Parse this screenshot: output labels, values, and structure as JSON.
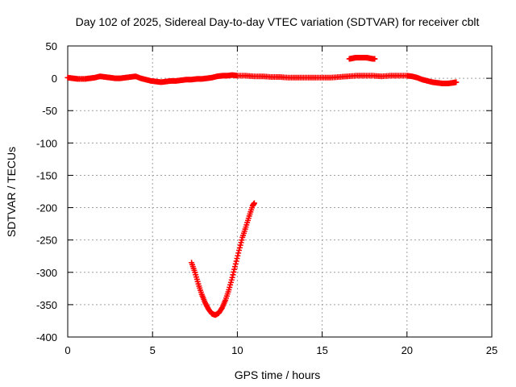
{
  "chart_data": {
    "type": "scatter",
    "title": "Day 102 of 2025, Sidereal Day-to-day VTEC variation (SDTVAR) for receiver cblt",
    "xlabel": "GPS time / hours",
    "ylabel": "SDTVAR / TECUs",
    "xlim": [
      0,
      25
    ],
    "ylim": [
      -400,
      50
    ],
    "xticks": [
      0,
      5,
      10,
      15,
      20,
      25
    ],
    "yticks": [
      50,
      0,
      -50,
      -100,
      -150,
      -200,
      -250,
      -300,
      -350,
      -400
    ],
    "grid": true,
    "marker": "plus",
    "color": "#ff0000",
    "series": [
      {
        "points": [
          [
            0.0,
            1
          ],
          [
            0.3,
            0
          ],
          [
            0.6,
            -1
          ],
          [
            1.0,
            -1
          ],
          [
            1.3,
            0
          ],
          [
            1.6,
            1
          ],
          [
            1.9,
            3
          ],
          [
            2.2,
            2
          ],
          [
            2.5,
            1
          ],
          [
            2.8,
            0
          ],
          [
            3.1,
            0
          ],
          [
            3.4,
            1
          ],
          [
            3.7,
            2
          ],
          [
            4.0,
            3
          ],
          [
            4.3,
            0
          ],
          [
            4.6,
            -2
          ],
          [
            4.9,
            -4
          ],
          [
            5.2,
            -5
          ],
          [
            5.5,
            -6
          ],
          [
            5.8,
            -5
          ],
          [
            6.1,
            -4
          ],
          [
            6.4,
            -4
          ],
          [
            6.7,
            -3
          ],
          [
            7.0,
            -2
          ],
          [
            7.3,
            -2
          ],
          [
            7.6,
            -1
          ],
          [
            7.9,
            -1
          ],
          [
            8.2,
            0
          ],
          [
            8.5,
            1
          ],
          [
            8.8,
            3
          ],
          [
            9.1,
            4
          ],
          [
            9.4,
            4
          ],
          [
            9.7,
            5
          ],
          [
            10.0,
            4
          ],
          [
            10.5,
            4
          ],
          [
            11.0,
            3
          ],
          [
            11.5,
            3
          ],
          [
            12.0,
            2
          ],
          [
            12.5,
            2
          ],
          [
            13.0,
            1
          ],
          [
            13.5,
            1
          ],
          [
            14.0,
            1
          ],
          [
            14.5,
            1
          ],
          [
            15.0,
            1
          ],
          [
            15.5,
            1
          ],
          [
            16.0,
            2
          ],
          [
            16.5,
            3
          ],
          [
            17.0,
            4
          ],
          [
            17.5,
            4
          ],
          [
            18.0,
            4
          ],
          [
            18.5,
            3
          ],
          [
            19.0,
            4
          ],
          [
            19.5,
            4
          ],
          [
            20.0,
            4
          ],
          [
            20.3,
            3
          ],
          [
            20.6,
            1
          ],
          [
            20.9,
            -2
          ],
          [
            21.2,
            -4
          ],
          [
            21.5,
            -6
          ],
          [
            21.8,
            -7
          ],
          [
            22.1,
            -8
          ],
          [
            22.4,
            -8
          ],
          [
            22.7,
            -7
          ],
          [
            22.9,
            -6
          ]
        ]
      },
      {
        "points": [
          [
            16.6,
            30
          ],
          [
            16.8,
            31
          ],
          [
            17.0,
            32
          ],
          [
            17.2,
            32
          ],
          [
            17.4,
            32
          ],
          [
            17.6,
            32
          ],
          [
            17.8,
            31
          ],
          [
            18.0,
            30
          ],
          [
            18.1,
            30
          ]
        ]
      },
      {
        "points": [
          [
            7.3,
            -285
          ],
          [
            7.5,
            -300
          ],
          [
            7.7,
            -318
          ],
          [
            7.9,
            -334
          ],
          [
            8.1,
            -347
          ],
          [
            8.3,
            -357
          ],
          [
            8.5,
            -364
          ],
          [
            8.7,
            -366
          ],
          [
            8.9,
            -363
          ],
          [
            9.1,
            -355
          ],
          [
            9.3,
            -343
          ],
          [
            9.5,
            -327
          ],
          [
            9.7,
            -308
          ],
          [
            9.9,
            -287
          ],
          [
            10.1,
            -266
          ],
          [
            10.3,
            -246
          ],
          [
            10.5,
            -230
          ],
          [
            10.7,
            -213
          ],
          [
            10.9,
            -197
          ],
          [
            11.0,
            -193
          ]
        ]
      }
    ]
  }
}
